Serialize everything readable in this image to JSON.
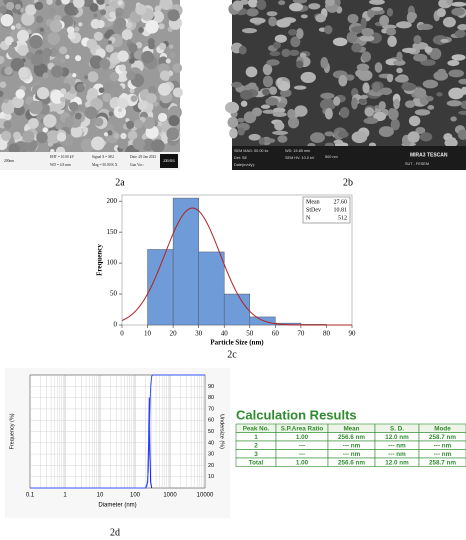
{
  "sem_images": [
    {
      "caption": "2a",
      "logo": "ZEISS",
      "info": [
        "200nm",
        "EHT = 10.00 kV",
        "WD = 4.8 mm",
        "Signal A = SE2",
        "Mag = 50.00 K X",
        "Date :29 Jan 2023",
        "Gun Vac :"
      ]
    },
    {
      "caption": "2b",
      "logo": "MIRA3 TESCAN",
      "info": [
        "SEM MAG: 50.00 kx",
        "Det: SE",
        "Date(m/d/y):",
        "WD: 15.85 mm",
        "SEM HV: 10.0 kV",
        "500 nm",
        "SUT - FESEM"
      ]
    }
  ],
  "chart_data": [
    {
      "type": "histogram",
      "caption": "2c",
      "x_label": "Particle Size (nm)",
      "y_label": "Frequency",
      "bins": [
        10,
        20,
        30,
        40,
        50,
        60,
        70,
        80
      ],
      "values": [
        122,
        205,
        118,
        50,
        13,
        3,
        1
      ],
      "color": "#6f9bd8",
      "curve_color": "#b22222",
      "xlim": [
        0,
        90
      ],
      "xticks": [
        0,
        10,
        20,
        30,
        40,
        50,
        60,
        70,
        80,
        90
      ],
      "ylim": [
        0,
        210
      ],
      "yticks": [
        0,
        50,
        100,
        150,
        200
      ],
      "stats": [
        {
          "name": "Mean",
          "value": 27.6,
          "label": "27.60"
        },
        {
          "name": "StDev",
          "value": 10.81,
          "label": "10.81"
        },
        {
          "name": "N",
          "value": 512,
          "label": "512"
        }
      ]
    },
    {
      "type": "line",
      "caption": "2d",
      "x_label": "Diameter (nm)",
      "y_label": "Frequency (%)",
      "y2_label": "Undersize (%)",
      "log_x": true,
      "grid": true,
      "xlim": [
        0.1,
        10000
      ],
      "xticks": [
        0.1,
        1,
        10,
        100,
        1000,
        10000
      ],
      "ylim": [
        0,
        100
      ],
      "y2lim": [
        0,
        100
      ],
      "y2ticks": [
        10,
        20,
        30,
        40,
        50,
        60,
        70,
        80,
        90
      ],
      "series": [
        {
          "color": "#1a1aff",
          "axis": "y",
          "x": [
            200,
            230,
            245,
            256,
            265,
            280,
            300
          ],
          "values": [
            0,
            5,
            40,
            80,
            40,
            5,
            0
          ]
        },
        {
          "color": "#3355ff",
          "axis": "y2",
          "x": [
            0.1,
            200,
            220,
            240,
            250,
            260,
            270,
            280,
            300,
            320,
            10000
          ],
          "values": [
            0,
            0,
            2,
            15,
            35,
            55,
            75,
            90,
            99,
            100,
            100
          ]
        }
      ]
    }
  ],
  "table": {
    "title": "Calculation Results",
    "header": [
      "Peak No.",
      "S.P.Area Ratio",
      "Mean",
      "S. D.",
      "Mode"
    ],
    "rows": [
      [
        "1",
        "1.00",
        "256.6 nm",
        "12.0 nm",
        "258.7 nm"
      ],
      [
        "2",
        "---",
        "--- nm",
        "--- nm",
        "--- nm"
      ],
      [
        "3",
        "---",
        "--- nm",
        "--- nm",
        "--- nm"
      ],
      [
        "Total",
        "1.00",
        "256.6 nm",
        "12.0 nm",
        "258.7 nm"
      ]
    ]
  }
}
